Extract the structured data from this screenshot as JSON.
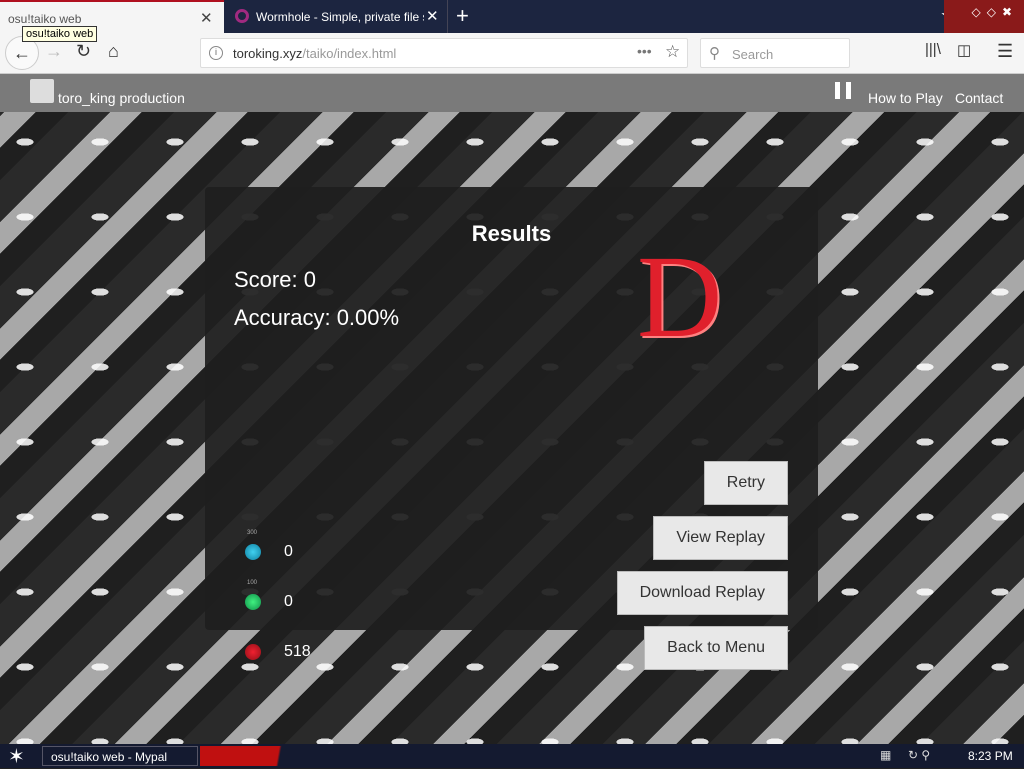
{
  "browser": {
    "tabs": [
      {
        "label": "osu!taiko web",
        "active": true
      },
      {
        "label": "Wormhole - Simple, private file sharing",
        "active": false
      }
    ],
    "tooltip": "osu!taiko web",
    "url_host": "toroking.xyz",
    "url_path": "/taiko/index.html",
    "search_placeholder": "Search"
  },
  "site": {
    "brand": "toro_king production",
    "nav": [
      "How to Play",
      "Contact"
    ]
  },
  "results": {
    "title": "Results",
    "score": "Score: 0",
    "accuracy": "Accuracy: 0.00%",
    "grade": "D",
    "hits": [
      {
        "label": "300",
        "value": "0",
        "color": "#20a8c8"
      },
      {
        "label": "100",
        "value": "0",
        "color": "#20c050"
      },
      {
        "label": "x",
        "value": "518",
        "color": "#c01020"
      }
    ],
    "buttons": [
      "Retry",
      "View Replay",
      "Download Replay",
      "Back to Menu"
    ]
  },
  "taskbar": {
    "task": "osu!taiko web - Mypal",
    "clock": "8:23 PM"
  }
}
